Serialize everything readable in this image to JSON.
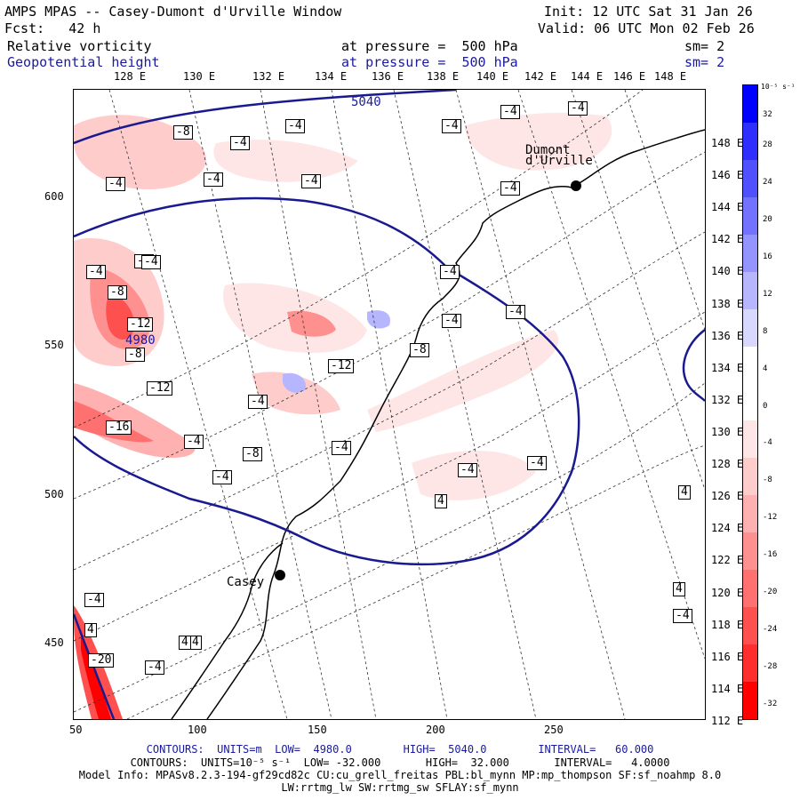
{
  "header": {
    "model": "AMPS MPAS -- Casey-Dumont d'Urville Window",
    "init": "Init: 12 UTC Sat 31 Jan 26",
    "fcst": "Fcst:   42 h",
    "valid": "Valid: 06 UTC Mon 02 Feb 26",
    "field1": {
      "name": "Relative vorticity",
      "level": "at pressure =  500 hPa",
      "sm": "sm= 2"
    },
    "field2": {
      "name": "Geopotential height",
      "level": "at pressure =  500 hPa",
      "sm": "sm= 2"
    }
  },
  "map": {
    "top_lon_labels": [
      "128 E",
      "130 E",
      "132 E",
      "134 E",
      "136 E",
      "138 E",
      "140 E",
      "142 E",
      "144 E",
      "146 E",
      "148 E"
    ],
    "right_lon_labels": [
      "148 E",
      "146 E",
      "144 E",
      "142 E",
      "140 E",
      "138 E",
      "136 E",
      "134 E",
      "132 E",
      "130 E",
      "128 E",
      "126 E",
      "124 E",
      "122 E",
      "120 E",
      "118 E",
      "116 E",
      "114 E",
      "112 E"
    ],
    "x_ticks": [
      "50",
      "100",
      "150",
      "200",
      "250"
    ],
    "y_ticks": [
      "600",
      "550",
      "500",
      "450"
    ],
    "stations": [
      {
        "name": "Casey"
      },
      {
        "name": "Dumont d'Urville"
      }
    ],
    "height_contour_labels": [
      "5040",
      "4980"
    ],
    "vorticity_labels": [
      "-8",
      "-4",
      "-4",
      "-4",
      "-4",
      "-4",
      "-8",
      "-4",
      "-4",
      "-8",
      "-12",
      "-8",
      "-12",
      "-16",
      "-4",
      "-4",
      "-8",
      "-4",
      "-12",
      "-8",
      "-4",
      "-4",
      "-4",
      "-4",
      "-4",
      "-4",
      "-4",
      "4",
      "4",
      "4",
      "4",
      "-4",
      "-4",
      "-4",
      "-4",
      "4",
      "-20",
      "-4",
      "4",
      "-4"
    ]
  },
  "colorbar": {
    "units": "10⁻⁵ s⁻¹",
    "levels": [
      "32",
      "28",
      "24",
      "20",
      "16",
      "12",
      "8",
      "4",
      "0",
      "-4",
      "-8",
      "-12",
      "-16",
      "-20",
      "-24",
      "-28",
      "-32"
    ],
    "colors": [
      "#0000ff",
      "#2e2eff",
      "#5050ff",
      "#7272ff",
      "#9494ff",
      "#b6b6ff",
      "#d8d8ff",
      "#ffffff",
      "#ffffff",
      "#ffe6e6",
      "#ffcccc",
      "#ffb0b0",
      "#ff9090",
      "#ff7070",
      "#ff5050",
      "#ff2e2e",
      "#ff0000"
    ]
  },
  "footer": {
    "line1": "CONTOURS:  UNITS=m  LOW=  4980.0        HIGH=  5040.0        INTERVAL=   60.000",
    "line2": "CONTOURS:  UNITS=10⁻⁵ s⁻¹  LOW= -32.000       HIGH=  32.000       INTERVAL=   4.0000",
    "line3": "Model Info: MPASv8.2.3-194-gf29cd82c CU:cu_grell_freitas PBL:bl_mynn MP:mp_thompson SF:sf_noahmp 8.0",
    "line4": "LW:rrtmg_lw SW:rrtmg_sw SFLAY:sf_mynn"
  }
}
